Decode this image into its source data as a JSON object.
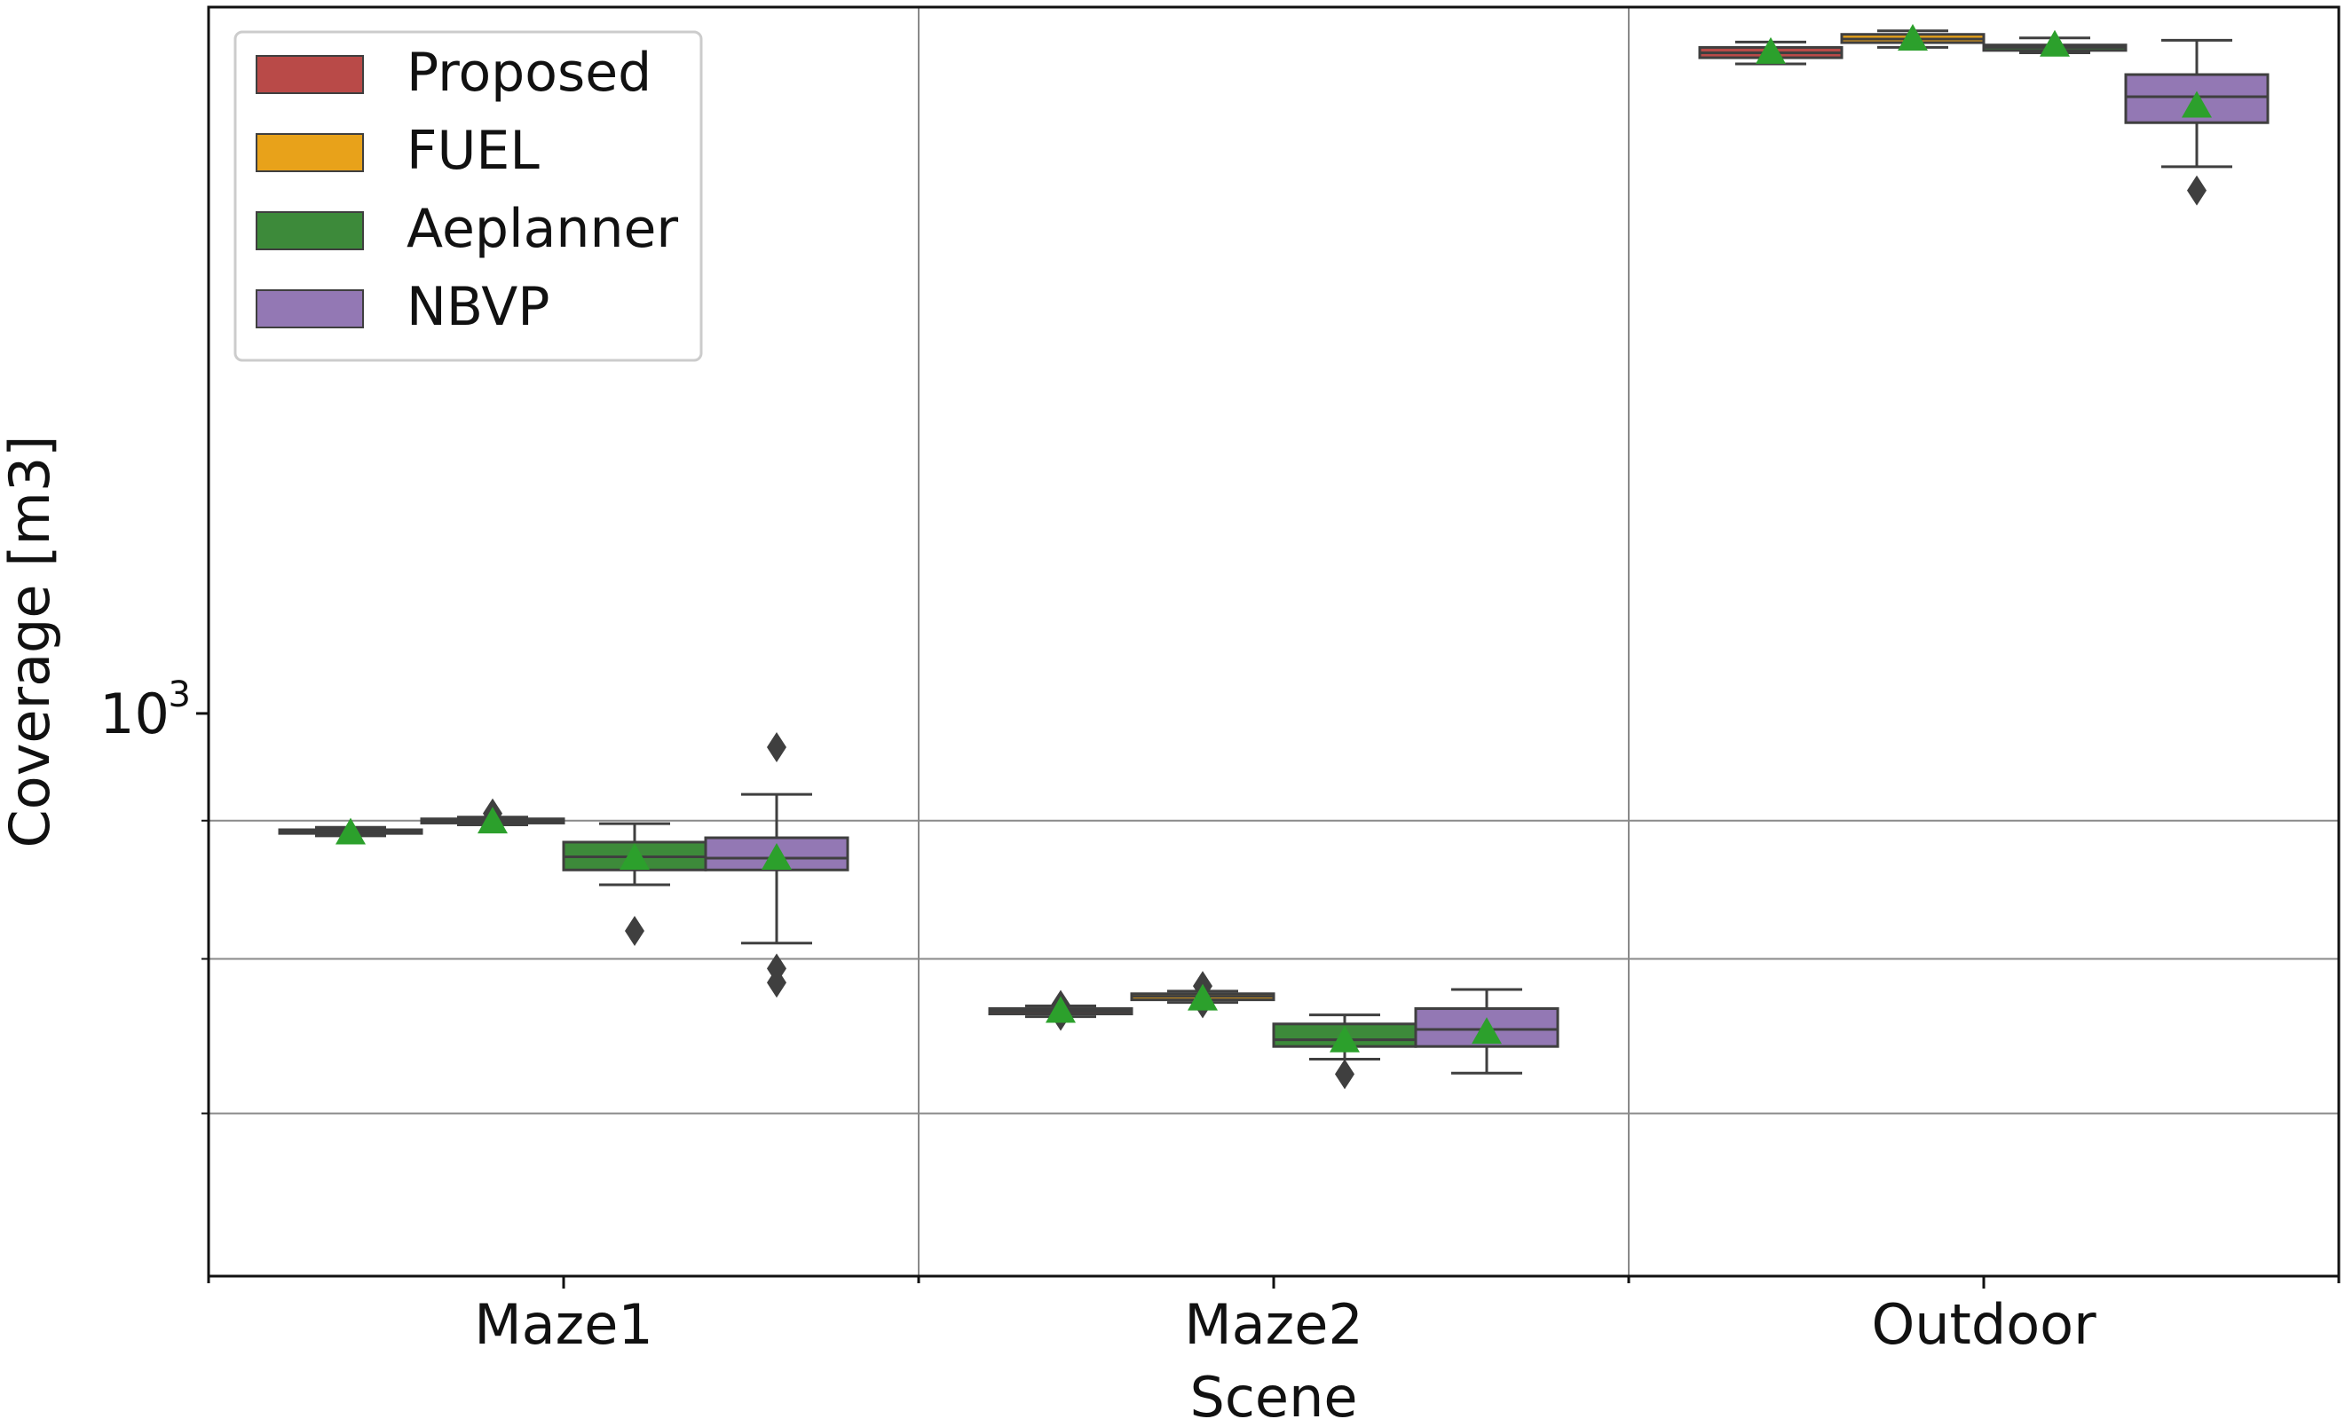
{
  "chart_data": {
    "type": "box",
    "title": "",
    "xlabel": "Scene",
    "ylabel": "Coverage [m3]",
    "yscale": "log",
    "ylim": [
      310,
      4350
    ],
    "y_tick_labels": [
      {
        "value": 1000,
        "base": "10",
        "exponent": "3"
      }
    ],
    "y_minor_gridlines": [
      800,
      600,
      435
    ],
    "categories": [
      "Maze1",
      "Maze2",
      "Outdoor"
    ],
    "legend": {
      "location": "upper-left"
    },
    "series": [
      {
        "name": "Proposed",
        "color": "#b94a48",
        "boxes": [
          {
            "whislo": 775,
            "q1": 779,
            "med": 782,
            "q3": 785,
            "whishi": 789,
            "mean": 780,
            "fliers": []
          },
          {
            "whislo": 532,
            "q1": 535,
            "med": 538,
            "q3": 541,
            "whishi": 544,
            "mean": 538,
            "fliers": [
              533,
              545
            ]
          },
          {
            "whislo": 3865,
            "q1": 3915,
            "med": 3955,
            "q3": 4000,
            "whishi": 4045,
            "mean": 3960,
            "fliers": []
          }
        ]
      },
      {
        "name": "FUEL",
        "color": "#e8a21a",
        "boxes": [
          {
            "whislo": 793,
            "q1": 796,
            "med": 800,
            "q3": 803,
            "whishi": 806,
            "mean": 798,
            "fliers": [
              804,
              812
            ]
          },
          {
            "whislo": 548,
            "q1": 551,
            "med": 555,
            "q3": 558,
            "whishi": 561,
            "mean": 552,
            "fliers": [
              547,
              567
            ]
          },
          {
            "whislo": 4000,
            "q1": 4040,
            "med": 4070,
            "q3": 4110,
            "whishi": 4140,
            "mean": 4070,
            "fliers": []
          }
        ]
      },
      {
        "name": "Aeplanner",
        "color": "#3d8a3a",
        "boxes": [
          {
            "whislo": 700,
            "q1": 722,
            "med": 742,
            "q3": 765,
            "whishi": 795,
            "mean": 740,
            "fliers": [
              636
            ]
          },
          {
            "whislo": 487,
            "q1": 500,
            "med": 507,
            "q3": 524,
            "whishi": 534,
            "mean": 506,
            "fliers": [
              472
            ]
          },
          {
            "whislo": 3955,
            "q1": 3975,
            "med": 4000,
            "q3": 4020,
            "whishi": 4080,
            "mean": 4020,
            "fliers": []
          }
        ]
      },
      {
        "name": "NBVP",
        "color": "#9378b4",
        "boxes": [
          {
            "whislo": 620,
            "q1": 722,
            "med": 740,
            "q3": 772,
            "whishi": 845,
            "mean": 740,
            "fliers": [
              588,
              571,
              932
            ]
          },
          {
            "whislo": 473,
            "q1": 500,
            "med": 518,
            "q3": 541,
            "whishi": 563,
            "mean": 515,
            "fliers": []
          },
          {
            "whislo": 3120,
            "q1": 3420,
            "med": 3610,
            "q3": 3780,
            "whishi": 4060,
            "mean": 3540,
            "fliers": [
              2970
            ]
          }
        ]
      }
    ],
    "mean_marker_color": "#2ca02c"
  }
}
